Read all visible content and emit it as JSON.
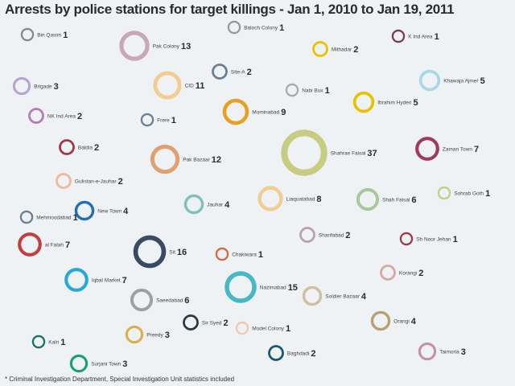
{
  "chart_data": {
    "type": "bubble",
    "title": "Arrests by police stations for target killings - Jan 1, 2010 to Jan 19, 2011",
    "footnote": "* Criminal Investigation Department, Special Investigation Unit statistics included",
    "points": [
      {
        "name": "Bin Qasim",
        "value": 1,
        "color": "#888888"
      },
      {
        "name": "Pak Colony",
        "value": 13,
        "color": "#c8a8b8"
      },
      {
        "name": "Baloch Colony",
        "value": 1,
        "color": "#999999"
      },
      {
        "name": "Mithadar",
        "value": 2,
        "color": "#e8c200"
      },
      {
        "name": "K Ind Area",
        "value": 1,
        "color": "#7a3a52"
      },
      {
        "name": "Site-A",
        "value": 2,
        "color": "#6a7f93"
      },
      {
        "name": "Brigade",
        "value": 3,
        "color": "#b8a4d4"
      },
      {
        "name": "CID",
        "value": 11,
        "color": "#f2cc90"
      },
      {
        "name": "Nabi Bux",
        "value": 1,
        "color": "#aaaaaa"
      },
      {
        "name": "Khawaja Ajmer",
        "value": 5,
        "color": "#a8d8e8"
      },
      {
        "name": "Ibrahim Hyderi",
        "value": 5,
        "color": "#e8c200"
      },
      {
        "name": "NK Ind Area",
        "value": 2,
        "color": "#b878b8"
      },
      {
        "name": "Frere",
        "value": 1,
        "color": "#6a7f93"
      },
      {
        "name": "Mominabad",
        "value": 9,
        "color": "#e8a020"
      },
      {
        "name": "Baldia",
        "value": 2,
        "color": "#a03848"
      },
      {
        "name": "Shahrae Faisal",
        "value": 37,
        "color": "#c8cc80"
      },
      {
        "name": "Zaman Town",
        "value": 7,
        "color": "#a03860"
      },
      {
        "name": "Pak Bazaar",
        "value": 12,
        "color": "#e0a070"
      },
      {
        "name": "Gulistan-e-Jauhar",
        "value": 2,
        "color": "#f0b898"
      },
      {
        "name": "Liaquatabad",
        "value": 8,
        "color": "#f2cc90"
      },
      {
        "name": "Shah Faisal",
        "value": 6,
        "color": "#a8c898"
      },
      {
        "name": "Sohrab Goth",
        "value": 1,
        "color": "#c0d080"
      },
      {
        "name": "Jauhar",
        "value": 4,
        "color": "#80c0b8"
      },
      {
        "name": "New Town",
        "value": 4,
        "color": "#2070b8"
      },
      {
        "name": "Mehmoodabad",
        "value": 1,
        "color": "#6a7f93"
      },
      {
        "name": "Sharifabad",
        "value": 2,
        "color": "#b8a0b0"
      },
      {
        "name": "Sh Noor Jehan",
        "value": 1,
        "color": "#a03848"
      },
      {
        "name": "al Falah",
        "value": 7,
        "color": "#c04040"
      },
      {
        "name": "Sit",
        "value": 16,
        "color": "#3a4a60"
      },
      {
        "name": "Chakiwara",
        "value": 1,
        "color": "#d06848"
      },
      {
        "name": "Korangi",
        "value": 2,
        "color": "#d8a8a0"
      },
      {
        "name": "Iqbal Market",
        "value": 7,
        "color": "#28a8d8"
      },
      {
        "name": "Nazimabad",
        "value": 15,
        "color": "#48b8c8"
      },
      {
        "name": "Saeedabad",
        "value": 6,
        "color": "#a0a0a0"
      },
      {
        "name": "Soldier Bazaar",
        "value": 4,
        "color": "#d0c0a0"
      },
      {
        "name": "Orangi",
        "value": 4,
        "color": "#b8a070"
      },
      {
        "name": "Sir Syed",
        "value": 2,
        "color": "#2a3a40"
      },
      {
        "name": "Preedy",
        "value": 3,
        "color": "#d8b050"
      },
      {
        "name": "Model Colony",
        "value": 1,
        "color": "#f0c8b0"
      },
      {
        "name": "Kalri",
        "value": 1,
        "color": "#187060"
      },
      {
        "name": "Baghdadi",
        "value": 2,
        "color": "#185870"
      },
      {
        "name": "Taimoria",
        "value": 3,
        "color": "#c890a8"
      },
      {
        "name": "Surjani Town",
        "value": 3,
        "color": "#18a070"
      }
    ]
  }
}
